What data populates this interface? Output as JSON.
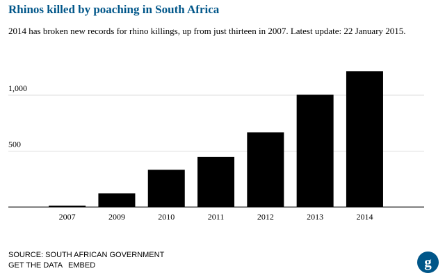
{
  "header": {
    "title": "Rhinos killed by poaching in South Africa",
    "subtitle": "2014 has broken new records for rhino killings, up from just thirteen in 2007. Latest update: 22 January 2015."
  },
  "footer": {
    "source": "SOURCE: SOUTH AFRICAN GOVERNMENT",
    "get_data": "GET THE DATA",
    "embed": "EMBED",
    "logo_icon": "guardian-g-icon"
  },
  "colors": {
    "title": "#005689",
    "bar": "#000000",
    "gridline": "#dddddd",
    "baseline": "#000000",
    "logo": "#005689"
  },
  "chart_data": {
    "type": "bar",
    "categories": [
      "2007",
      "2009",
      "2010",
      "2011",
      "2012",
      "2013",
      "2014"
    ],
    "values": [
      13,
      122,
      333,
      448,
      668,
      1004,
      1215
    ],
    "ylim": [
      0,
      1300
    ],
    "yticks": [
      500,
      1000
    ],
    "ytick_labels": [
      "500",
      "1,000"
    ],
    "grid": true,
    "legend": "none"
  }
}
